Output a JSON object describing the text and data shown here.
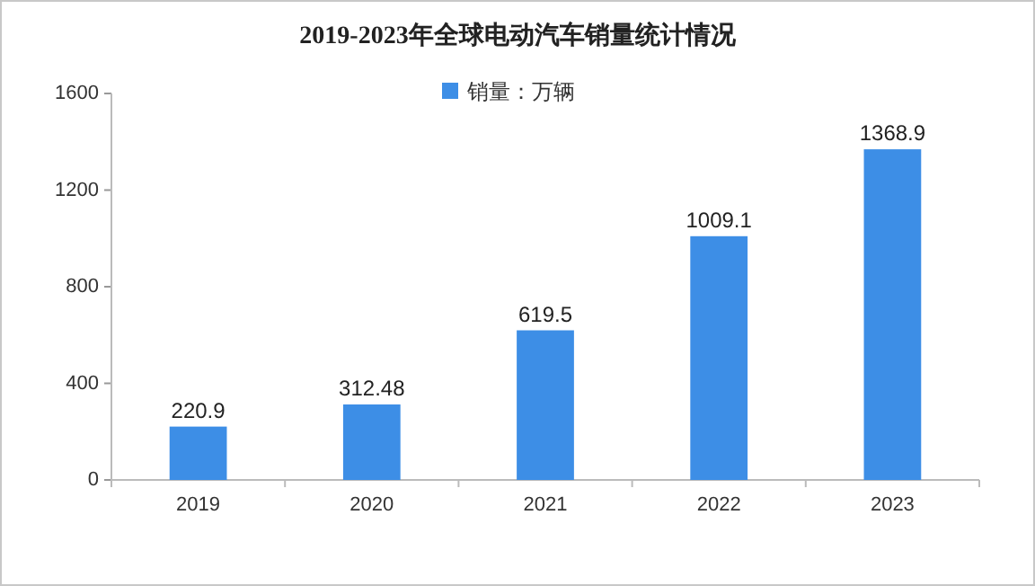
{
  "chart_data": {
    "type": "bar",
    "title": "2019-2023年全球电动汽车销量统计情况",
    "categories": [
      "2019",
      "2020",
      "2021",
      "2022",
      "2023"
    ],
    "series": [
      {
        "name": "销量：万辆",
        "color": "#3d8ee6",
        "values": [
          220.9,
          312.48,
          619.5,
          1009.1,
          1368.9
        ]
      }
    ],
    "ylim": [
      0,
      1600
    ],
    "yticks": [
      0,
      400,
      800,
      1200,
      1600
    ],
    "legend": "top",
    "data_labels": true,
    "grid": false
  }
}
